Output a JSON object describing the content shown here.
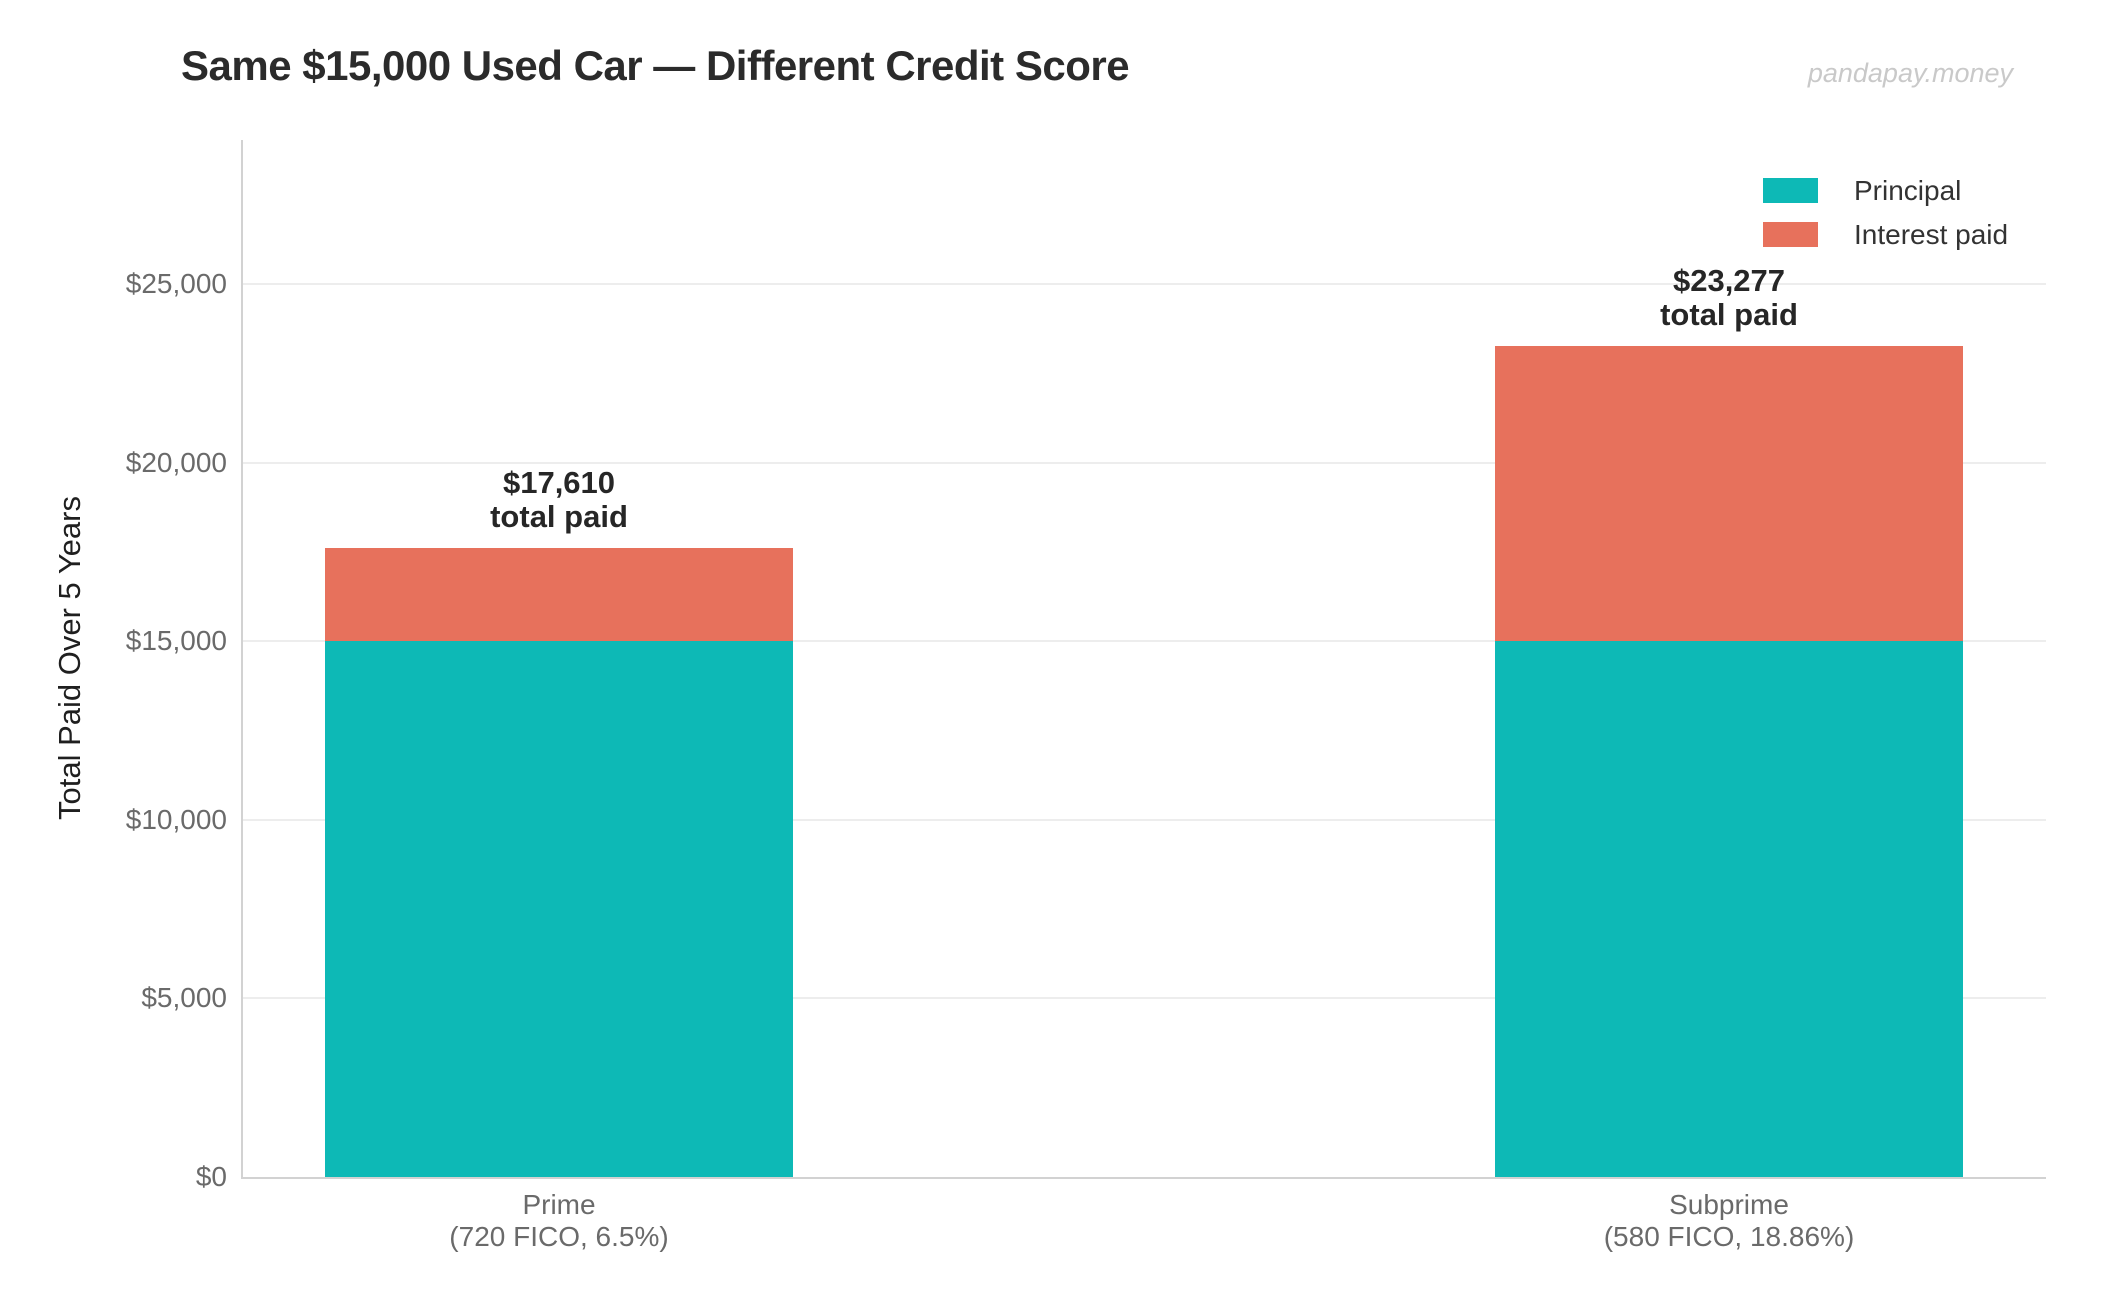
{
  "header": {
    "title": "Same $15,000 Used Car — Different Credit Score",
    "watermark": "pandapay.money"
  },
  "chart_data": {
    "type": "bar",
    "stacked": true,
    "title": "Same $15,000 Used Car — Different Credit Score",
    "ylabel": "Total Paid Over 5 Years",
    "xlabel": "",
    "categories": [
      "Prime",
      "Subprime"
    ],
    "category_sublabels": [
      "(720 FICO, 6.5%)",
      "(580 FICO, 18.86%)"
    ],
    "series": [
      {
        "name": "Principal",
        "color": "#0db9b6",
        "values": [
          15000,
          15000
        ]
      },
      {
        "name": "Interest paid",
        "color": "#e7715c",
        "values": [
          2610,
          8277
        ]
      }
    ],
    "totals": [
      17610,
      23277
    ],
    "total_label_lines": [
      [
        "$17,610",
        "total paid"
      ],
      [
        "$23,277",
        "total paid"
      ]
    ],
    "y_ticks": [
      {
        "value": 0,
        "label": "$0"
      },
      {
        "value": 5000,
        "label": "$5,000"
      },
      {
        "value": 10000,
        "label": "$10,000"
      },
      {
        "value": 15000,
        "label": "$15,000"
      },
      {
        "value": 20000,
        "label": "$20,000"
      },
      {
        "value": 25000,
        "label": "$25,000"
      }
    ],
    "ylim": [
      0,
      29000
    ],
    "grid": true,
    "legend_position": "top-right",
    "legend": [
      "Principal",
      "Interest paid"
    ]
  },
  "colors": {
    "principal": "#0db9b6",
    "interest": "#e7715c",
    "grid": "#ededed",
    "spine": "#d2d2d2",
    "tick_text": "#6a6a6a",
    "title_text": "#2b2b2b",
    "label_text": "#262626",
    "legend_text": "#333333",
    "watermark_text": "#c9c9c9"
  }
}
